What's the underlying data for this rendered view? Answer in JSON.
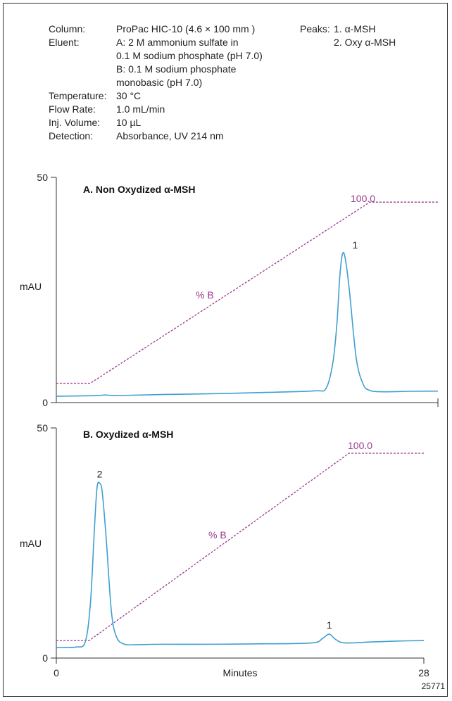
{
  "conditions": [
    {
      "label": "Column:",
      "lines": [
        "ProPac HIC-10 (4.6 × 100 mm )"
      ]
    },
    {
      "label": "Eluent:",
      "lines": [
        "A: 2 M ammonium sulfate in",
        "0.1 M sodium phosphate  (pH 7.0)",
        "B: 0.1 M sodium phosphate",
        "monobasic (pH 7.0)"
      ]
    },
    {
      "label": "Temperature:",
      "lines": [
        "30 °C"
      ]
    },
    {
      "label": "Flow Rate:",
      "lines": [
        "1.0 mL/min"
      ]
    },
    {
      "label": "Inj. Volume:",
      "lines": [
        "10 µL"
      ]
    },
    {
      "label": "Detection:",
      "lines": [
        "Absorbance, UV 214 nm"
      ]
    }
  ],
  "peaks": {
    "label": "Peaks:",
    "items": [
      "1. α-MSH",
      "2. Oxy α-MSH"
    ]
  },
  "figure_number": "25771",
  "colors": {
    "trace": "#3f9fd0",
    "gradient": "#9b3a8e",
    "axis": "#333333"
  },
  "chart_data": [
    {
      "type": "line",
      "title": "A. Non Oxydized α-MSH",
      "ylabel": "mAU",
      "xlabel": "",
      "xlim": [
        0,
        28
      ],
      "ylim": [
        0,
        50
      ],
      "y_ticks": [
        0,
        50
      ],
      "series": [
        {
          "x": [
            0,
            1,
            2,
            3,
            3.6,
            4,
            5,
            8,
            12,
            16,
            19,
            19.8,
            20.3,
            20.6,
            20.8,
            21.0,
            21.2,
            21.5,
            22.0,
            22.5,
            23,
            24,
            26,
            28
          ],
          "y": [
            1.4,
            1.45,
            1.5,
            1.55,
            1.7,
            1.6,
            1.6,
            1.8,
            2.0,
            2.3,
            2.6,
            3.2,
            9.0,
            18.0,
            28.0,
            33.0,
            32.0,
            25.0,
            10.0,
            4.2,
            2.7,
            2.4,
            2.5,
            2.55
          ]
        }
      ],
      "gradient": {
        "label": "% B",
        "end_label": "100.0",
        "x": [
          0,
          2.5,
          23,
          28
        ],
        "y": [
          4.3,
          4.3,
          44.5,
          44.5
        ]
      },
      "peak_labels": [
        {
          "text": "1",
          "x": 21.1,
          "y": 33
        }
      ]
    },
    {
      "type": "line",
      "title": "B. Oxydized α-MSH",
      "ylabel": "mAU",
      "xlabel": "Minutes",
      "xlim": [
        0,
        28
      ],
      "ylim": [
        0,
        50
      ],
      "x_ticks": [
        0,
        28
      ],
      "y_ticks": [
        0,
        50
      ],
      "series": [
        {
          "x": [
            0,
            1.5,
            2.2,
            2.6,
            2.9,
            3.1,
            3.3,
            3.5,
            3.8,
            4.2,
            4.6,
            5.2,
            6,
            8,
            12,
            16,
            19.5,
            20.3,
            20.8,
            21.3,
            22,
            24,
            26,
            28
          ],
          "y": [
            2.3,
            2.4,
            3.5,
            12.0,
            28.0,
            37.0,
            38.0,
            36.0,
            26.0,
            10.0,
            4.5,
            3.0,
            2.9,
            3.0,
            3.0,
            3.1,
            3.3,
            4.3,
            5.2,
            4.0,
            3.3,
            3.5,
            3.7,
            3.8
          ]
        }
      ],
      "gradient": {
        "label": "% B",
        "end_label": "100.0",
        "x": [
          0,
          2.5,
          22.3,
          28
        ],
        "y": [
          3.8,
          3.8,
          44.5,
          44.5
        ]
      },
      "peak_labels": [
        {
          "text": "2",
          "x": 3.3,
          "y": 38
        },
        {
          "text": "1",
          "x": 20.8,
          "y": 5.2
        }
      ]
    }
  ]
}
